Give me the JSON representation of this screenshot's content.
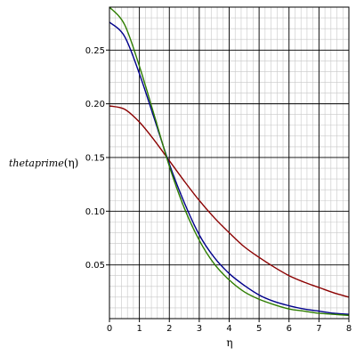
{
  "chart_data": {
    "type": "line",
    "xlabel": "η",
    "ylabel_name": "thetaprime",
    "ylabel_arg": "(η)",
    "xlim": [
      0,
      8
    ],
    "ylim": [
      0,
      0.29
    ],
    "x_ticks": [
      0,
      1,
      2,
      3,
      4,
      5,
      6,
      7,
      8
    ],
    "x_tick_labels": [
      "0",
      "1",
      "2",
      "3",
      "4",
      "5",
      "6",
      "7",
      "8"
    ],
    "y_ticks": [
      0.05,
      0.1,
      0.15,
      0.2,
      0.25
    ],
    "y_tick_labels": [
      "0.05",
      "0.10",
      "0.15",
      "0.20",
      "0.25"
    ],
    "grid": true,
    "series": [
      {
        "color": "#8b0000",
        "x": [
          0,
          0.5,
          1,
          1.5,
          2,
          2.5,
          3,
          3.5,
          4,
          4.5,
          5,
          5.5,
          6,
          6.5,
          7,
          7.5,
          8
        ],
        "y": [
          0.198,
          0.195,
          0.183,
          0.166,
          0.147,
          0.128,
          0.11,
          0.094,
          0.08,
          0.067,
          0.057,
          0.048,
          0.04,
          0.034,
          0.029,
          0.024,
          0.02
        ]
      },
      {
        "color": "#00008b",
        "x": [
          0,
          0.5,
          1,
          1.5,
          2,
          2.5,
          3,
          3.5,
          4,
          4.5,
          5,
          5.5,
          6,
          6.5,
          7,
          7.5,
          8
        ],
        "y": [
          0.276,
          0.263,
          0.228,
          0.186,
          0.144,
          0.108,
          0.078,
          0.057,
          0.042,
          0.031,
          0.022,
          0.016,
          0.012,
          0.009,
          0.007,
          0.005,
          0.004
        ]
      },
      {
        "color": "#2e7d00",
        "x": [
          0,
          0.5,
          1,
          1.5,
          2,
          2.5,
          3,
          3.5,
          4,
          4.5,
          5,
          5.5,
          6,
          6.5,
          7,
          7.5,
          8
        ],
        "y": [
          0.29,
          0.274,
          0.235,
          0.189,
          0.142,
          0.103,
          0.073,
          0.051,
          0.036,
          0.025,
          0.018,
          0.013,
          0.009,
          0.007,
          0.005,
          0.004,
          0.003
        ]
      }
    ]
  }
}
